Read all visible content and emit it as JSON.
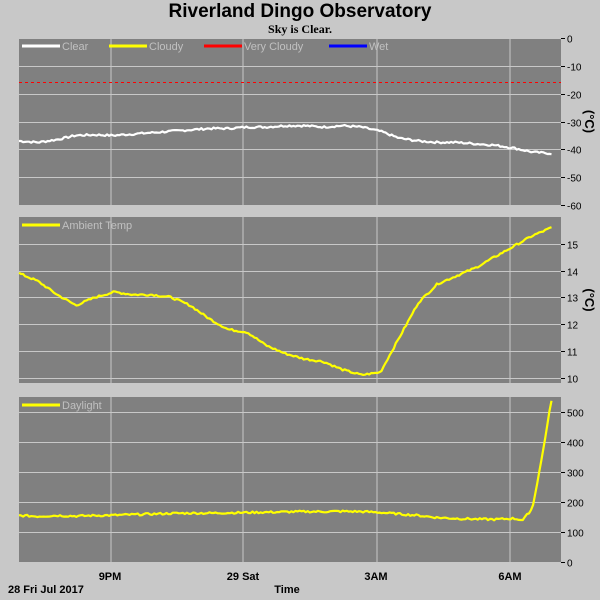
{
  "header": {
    "title": "Riverland Dingo Observatory",
    "subtitle": "Sky is Clear."
  },
  "footer": {
    "date_label": "28 Fri Jul 2017",
    "xlabel": "Time"
  },
  "chart_data": [
    {
      "type": "line",
      "ylim": [
        -60,
        0
      ],
      "yticks": [
        0,
        -10,
        -20,
        -30,
        -40,
        -50,
        -60
      ],
      "unit": "(°C)",
      "x_tick_labels": [
        "9PM",
        "29 Sat",
        "3AM",
        "6AM"
      ],
      "legend": [
        {
          "name": "Clear",
          "color": "#ffffff"
        },
        {
          "name": "Cloudy",
          "color": "#ffff00"
        },
        {
          "name": "Very Cloudy",
          "color": "#ff0000"
        },
        {
          "name": "Wet",
          "color": "#0000ff"
        }
      ],
      "threshold": {
        "name": "Very Cloudy",
        "value": -16,
        "color": "#ff0000",
        "dashed": true
      },
      "series": [
        {
          "name": "Clear",
          "color": "#ffffff",
          "x": [
            19.0,
            19.5,
            20.0,
            20.5,
            21.0,
            21.5,
            22.0,
            22.5,
            23.0,
            23.5,
            24.0,
            24.5,
            25.0,
            25.5,
            26.0,
            26.5,
            27.0,
            27.5,
            28.0,
            28.5,
            29.0,
            29.5,
            30.0,
            30.5,
            31.0,
            31.5,
            32.0,
            32.5,
            33.0
          ],
          "y": [
            -37,
            -37.5,
            -36.5,
            -35,
            -34.8,
            -35,
            -34.5,
            -34,
            -33.5,
            -33,
            -32.5,
            -32.5,
            -32,
            -32,
            -31.5,
            -31.5,
            -32,
            -31.5,
            -32,
            -33.5,
            -36,
            -37,
            -37.5,
            -37.5,
            -38,
            -38.5,
            -39.5,
            -41,
            -41.5
          ]
        }
      ]
    },
    {
      "type": "line",
      "ylim": [
        9.8,
        16.0
      ],
      "yticks": [
        10,
        11,
        12,
        13,
        14,
        15
      ],
      "unit": "(°C)",
      "legend": [
        {
          "name": "Ambient Temp",
          "color": "#ffff00"
        }
      ],
      "series": [
        {
          "name": "Ambient Temp",
          "color": "#ffff00",
          "x": [
            19.0,
            19.5,
            20.0,
            20.5,
            21.0,
            21.5,
            22.0,
            22.5,
            23.0,
            23.5,
            24.0,
            24.5,
            25.0,
            25.5,
            26.0,
            26.5,
            27.0,
            27.5,
            28.0,
            28.5,
            29.0,
            29.5,
            30.0,
            30.5,
            31.0,
            31.5,
            32.0,
            32.5,
            33.0
          ],
          "y": [
            13.9,
            13.6,
            13.1,
            12.7,
            13.0,
            13.2,
            13.1,
            13.1,
            13.0,
            12.7,
            12.2,
            11.8,
            11.7,
            11.2,
            10.9,
            10.7,
            10.6,
            10.3,
            10.1,
            10.2,
            11.5,
            12.8,
            13.5,
            13.8,
            14.1,
            14.5,
            14.9,
            15.3,
            15.6
          ]
        }
      ]
    },
    {
      "type": "line",
      "ylim": [
        0,
        550
      ],
      "yticks": [
        0,
        100,
        200,
        300,
        400,
        500
      ],
      "legend": [
        {
          "name": "Daylight",
          "color": "#ffff00"
        }
      ],
      "series": [
        {
          "name": "Daylight",
          "color": "#ffff00",
          "x": [
            19.0,
            19.5,
            20.0,
            20.5,
            21.0,
            21.5,
            22.0,
            22.5,
            23.0,
            23.5,
            24.0,
            24.5,
            25.0,
            25.5,
            26.0,
            26.5,
            27.0,
            27.5,
            28.0,
            28.5,
            29.0,
            29.5,
            30.0,
            30.5,
            31.0,
            31.5,
            32.0,
            32.25,
            32.5,
            32.75,
            33.0
          ],
          "y": [
            155,
            152,
            155,
            153,
            155,
            156,
            158,
            160,
            162,
            163,
            163,
            164,
            165,
            166,
            167,
            168,
            168,
            169,
            168,
            165,
            160,
            155,
            148,
            145,
            143,
            142,
            145,
            140,
            180,
            350,
            540
          ]
        }
      ]
    }
  ]
}
